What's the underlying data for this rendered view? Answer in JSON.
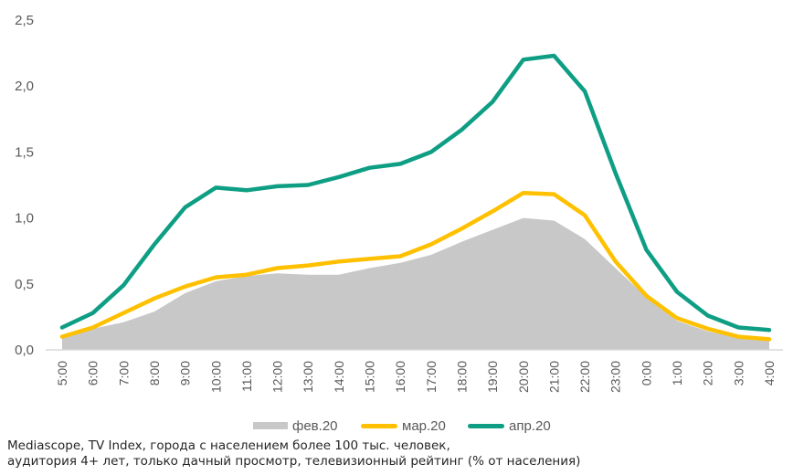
{
  "chart_data": {
    "type": "line",
    "title": "",
    "xlabel": "",
    "ylabel": "",
    "ylim": [
      0,
      2.5
    ],
    "yticks": [
      "0,0",
      "0,5",
      "1,0",
      "1,5",
      "2,0",
      "2,5"
    ],
    "ytick_values": [
      0,
      0.5,
      1.0,
      1.5,
      2.0,
      2.5
    ],
    "grid": false,
    "legend_position": "bottom",
    "categories": [
      "5:00",
      "6:00",
      "7:00",
      "8:00",
      "9:00",
      "10:00",
      "11:00",
      "12:00",
      "13:00",
      "14:00",
      "15:00",
      "16:00",
      "17:00",
      "18:00",
      "19:00",
      "20:00",
      "21:00",
      "22:00",
      "23:00",
      "0:00",
      "1:00",
      "2:00",
      "3:00",
      "4:00"
    ],
    "series": [
      {
        "name": "фев.20",
        "style": "area",
        "color": "#c8c8c8",
        "values": [
          0.1,
          0.16,
          0.21,
          0.29,
          0.43,
          0.52,
          0.56,
          0.58,
          0.57,
          0.57,
          0.62,
          0.66,
          0.72,
          0.82,
          0.91,
          1.0,
          0.98,
          0.84,
          0.62,
          0.4,
          0.22,
          0.14,
          0.09,
          0.07
        ]
      },
      {
        "name": "мар.20",
        "style": "line",
        "color": "#ffc000",
        "values": [
          0.1,
          0.17,
          0.28,
          0.39,
          0.48,
          0.55,
          0.57,
          0.62,
          0.64,
          0.67,
          0.69,
          0.71,
          0.8,
          0.92,
          1.05,
          1.19,
          1.18,
          1.02,
          0.67,
          0.41,
          0.24,
          0.16,
          0.1,
          0.08
        ]
      },
      {
        "name": "апр.20",
        "style": "line",
        "color": "#0e9e84",
        "values": [
          0.17,
          0.28,
          0.49,
          0.8,
          1.08,
          1.23,
          1.21,
          1.24,
          1.25,
          1.31,
          1.38,
          1.41,
          1.5,
          1.67,
          1.88,
          2.2,
          2.23,
          1.96,
          1.34,
          0.76,
          0.44,
          0.26,
          0.17,
          0.15
        ]
      }
    ]
  },
  "footnote": {
    "line1": "Mediascope, TV Index, города с населением более 100 тыс. человек,",
    "line2": "аудитория 4+ лет, только дачный просмотр, телевизионный рейтинг (% от населения)"
  }
}
